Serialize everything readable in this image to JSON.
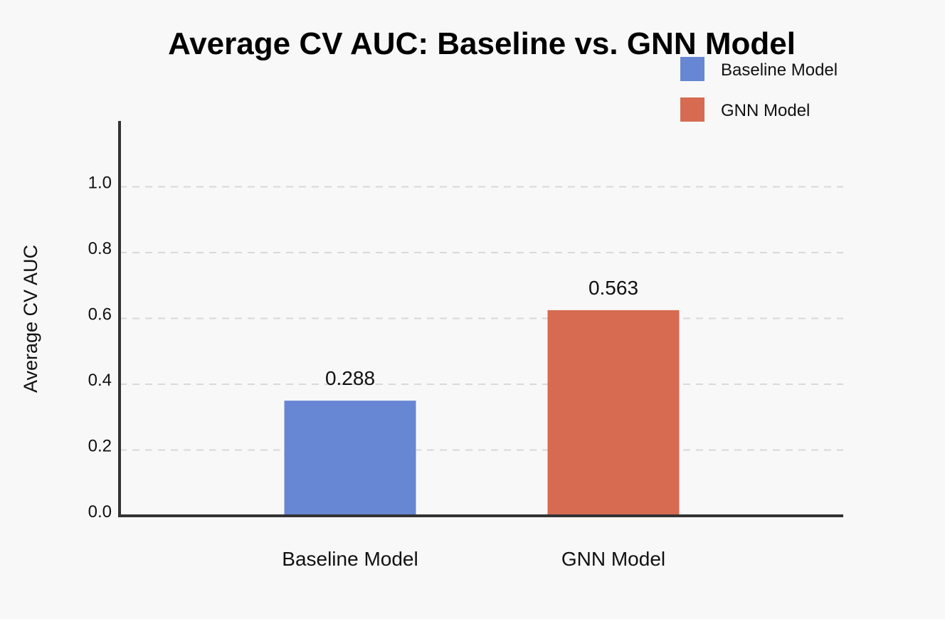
{
  "chart_data": {
    "type": "bar",
    "title": "Average CV AUC: Baseline vs. GNN Model",
    "xlabel": "",
    "ylabel": "Average CV AUC",
    "categories": [
      "Baseline Model",
      "GNN Model"
    ],
    "values": [
      0.35,
      0.625
    ],
    "data_labels": [
      "0.288",
      "0.563"
    ],
    "ylim": [
      0,
      1.2
    ],
    "yticks": [
      0.0,
      0.2,
      0.4,
      0.6,
      0.8,
      1.0
    ],
    "ytick_labels": [
      "0.0",
      "0.2",
      "0.4",
      "0.6",
      "0.8",
      "1.0"
    ],
    "colors": [
      "#6786d3",
      "#d66b52"
    ],
    "legend": {
      "placement": "top-right",
      "entries": [
        {
          "label": "Baseline Model",
          "color": "#6786d3"
        },
        {
          "label": "GNN Model",
          "color": "#d66b52"
        }
      ]
    },
    "grid": true
  }
}
